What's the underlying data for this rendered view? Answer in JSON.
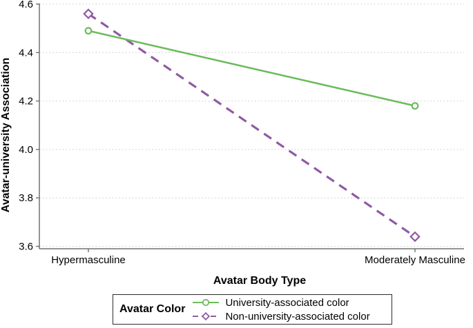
{
  "chart_data": {
    "type": "line",
    "title": "",
    "xlabel": "Avatar Body Type",
    "ylabel": "Avatar-university Association",
    "categories": [
      "Hypermasculine",
      "Moderately Masculine"
    ],
    "series": [
      {
        "name": "University-associated color",
        "values": [
          4.49,
          4.18
        ],
        "color": "#6cbc5c",
        "line_style": "solid",
        "marker": "circle"
      },
      {
        "name": "Non-university-associated color",
        "values": [
          4.56,
          3.64
        ],
        "color": "#9059a5",
        "line_style": "dashed",
        "marker": "diamond"
      }
    ],
    "ylim": [
      3.6,
      4.6
    ],
    "yticks": [
      3.6,
      3.8,
      4.0,
      4.2,
      4.4,
      4.6
    ],
    "grid": "horizontal-dotted",
    "legend": {
      "title": "Avatar Color",
      "position": "bottom"
    }
  },
  "style": {
    "axis_color": "#707070",
    "tick_label_color": "#000000",
    "gridline_color": "#d6d6d6",
    "legend_border_color": "#2b2b2b",
    "marker_fill": "#ffffff"
  }
}
